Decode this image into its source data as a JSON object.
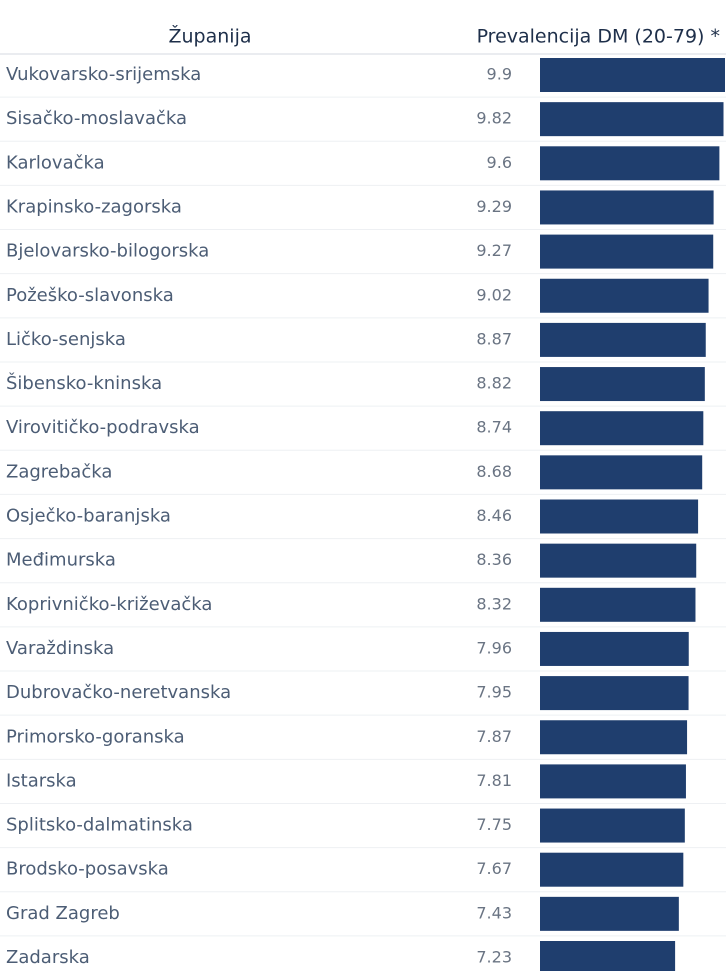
{
  "chart_data": {
    "type": "bar",
    "orientation": "horizontal",
    "column_headers": [
      "Županija",
      "Prevalencija DM (20-79) *"
    ],
    "color": "#1f3e6e",
    "categories": [
      "Vukovarsko-srijemska",
      "Sisačko-moslavačka",
      "Karlovačka",
      "Krapinsko-zagorska",
      "Bjelovarsko-bilogorska",
      "Požeško-slavonska",
      "Ličko-senjska",
      "Šibensko-kninska",
      "Virovitičko-podravska",
      "Zagrebačka",
      "Osječko-baranjska",
      "Međimurska",
      "Koprivničko-križevačka",
      "Varaždinska",
      "Dubrovačko-neretvanska",
      "Primorsko-goranska",
      "Istarska",
      "Splitsko-dalmatinska",
      "Brodsko-posavska",
      "Grad Zagreb",
      "Zadarska"
    ],
    "values": [
      9.9,
      9.82,
      9.6,
      9.29,
      9.27,
      9.02,
      8.87,
      8.82,
      8.74,
      8.68,
      8.46,
      8.36,
      8.32,
      7.96,
      7.95,
      7.87,
      7.81,
      7.75,
      7.67,
      7.43,
      7.23
    ]
  }
}
